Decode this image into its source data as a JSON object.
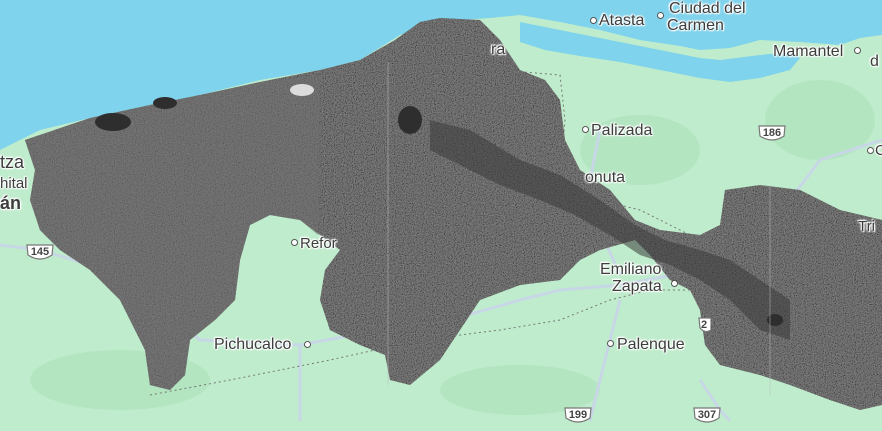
{
  "map": {
    "colors": {
      "water": "#7fd3ec",
      "land": "#bfeccc",
      "raster": "#5c5c5c",
      "road": "#c8d7e6"
    },
    "places": {
      "atasta": "Atasta",
      "ciudad_del_carmen_1": "Ciudad del",
      "ciudad_del_carmen_2": "Carmen",
      "mamantel": "Mamantel",
      "palizada": "Palizada",
      "jonuta_partial": "onuta",
      "reforma_partial": "Refor",
      "emiliano_zapata_1": "Emiliano",
      "emiliano_zapata_2": "Zapata",
      "pichucalco": "Pichucalco",
      "palenque": "Palenque",
      "frontera_partial": "ra",
      "left_partial_1": "tza",
      "left_partial_2": "hital",
      "left_partial_3": "án",
      "right_partial_1": "d",
      "right_partial_2": "Tri",
      "right_partial_3": "C"
    },
    "highways": [
      "145",
      "186",
      "199",
      "307",
      "2"
    ]
  }
}
